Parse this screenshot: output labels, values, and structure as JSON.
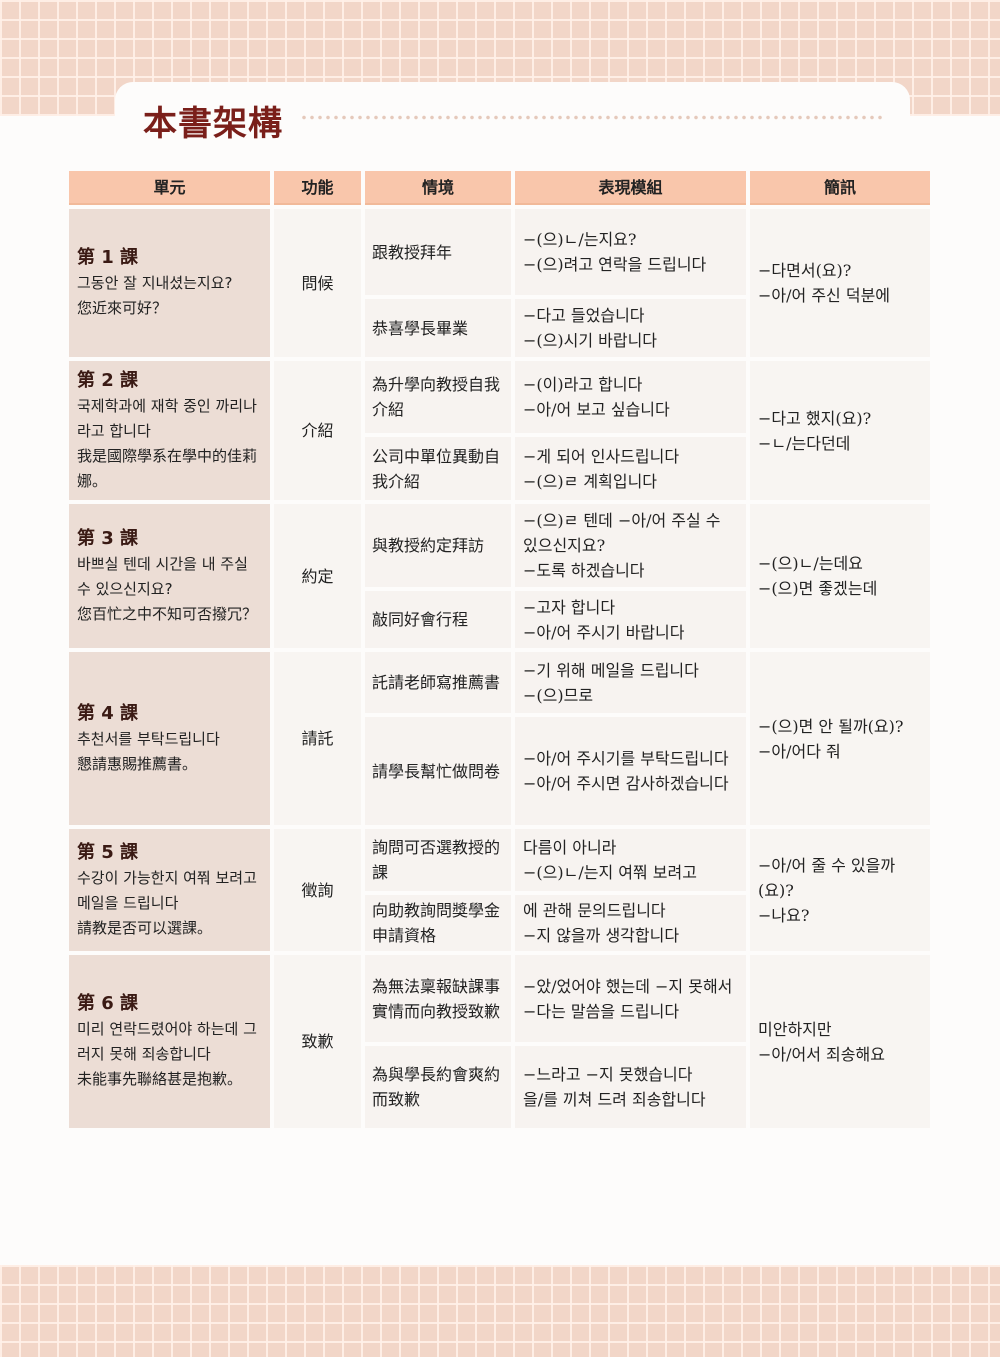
{
  "title": "本書架構",
  "headers": [
    "單元",
    "功能",
    "情境",
    "表現模組",
    "簡訊"
  ],
  "lessons": [
    {
      "lesson": "第 1 課",
      "korean": "그동안 잘 지내셨는지요?",
      "chinese": "您近來可好？",
      "function": "問候",
      "situations": [
        {
          "text": "跟教授拜年",
          "expressions": [
            "−(으)ㄴ/는지요?",
            "−(으)려고 연락을 드립니다"
          ]
        },
        {
          "text": "恭喜學長畢業",
          "expressions": [
            "−다고 들었습니다",
            "−(으)시기 바랍니다"
          ]
        }
      ],
      "notes": [
        "−다면서(요)?",
        "−아/어 주신 덕분에"
      ]
    },
    {
      "lesson": "第 2 課",
      "korean": "국제학과에 재학 중인 까리나라고 합니다",
      "chinese": "我是國際學系在學中的佳莉娜。",
      "function": "介紹",
      "situations": [
        {
          "text": "為升學向教授自我介紹",
          "expressions": [
            "−(이)라고 합니다",
            "−아/어 보고 싶습니다"
          ]
        },
        {
          "text": "公司中單位異動自我介紹",
          "expressions": [
            "−게 되어 인사드립니다",
            "−(으)ㄹ 계획입니다"
          ]
        }
      ],
      "notes": [
        "−다고 했지(요)?",
        "−ㄴ/는다던데"
      ]
    },
    {
      "lesson": "第 3 課",
      "korean": "바쁘실 텐데 시간을 내 주실 수 있으신지요?",
      "chinese": "您百忙之中不知可否撥冗？",
      "function": "約定",
      "situations": [
        {
          "text": "與教授約定拜訪",
          "expressions": [
            "−(으)ㄹ 텐데 −아/어 주실 수 있으신지요?",
            "−도록 하겠습니다"
          ]
        },
        {
          "text": "敲同好會行程",
          "expressions": [
            "−고자 합니다",
            "−아/어 주시기 바랍니다"
          ]
        }
      ],
      "notes": [
        "−(으)ㄴ/는데요",
        "−(으)면 좋겠는데"
      ]
    },
    {
      "lesson": "第 4 課",
      "korean": "추천서를 부탁드립니다",
      "chinese": "懇請惠賜推薦書。",
      "function": "請託",
      "situations": [
        {
          "text": "託請老師寫推薦書",
          "expressions": [
            "−기 위해 메일을 드립니다",
            "−(으)므로"
          ]
        },
        {
          "text": "請學長幫忙做問卷",
          "expressions": [
            "−아/어 주시기를 부탁드립니다",
            "−아/어 주시면 감사하겠습니다"
          ]
        }
      ],
      "notes": [
        "−(으)면 안 될까(요)?",
        "−아/어다 줘"
      ]
    },
    {
      "lesson": "第 5 課",
      "korean": "수강이 가능한지 여쭤 보려고 메일을 드립니다",
      "chinese": "請教是否可以選課。",
      "function": "徵詢",
      "situations": [
        {
          "text": "詢問可否選教授的課",
          "expressions": [
            "다름이 아니라",
            "−(으)ㄴ/는지 여쭤 보려고"
          ]
        },
        {
          "text": "向助教詢問獎學金申請資格",
          "expressions": [
            "에 관해 문의드립니다",
            "−지 않을까 생각합니다"
          ]
        }
      ],
      "notes": [
        "−아/어 줄 수 있을까(요)?",
        "−나요?"
      ]
    },
    {
      "lesson": "第 6 課",
      "korean": "미리 연락드렸어야 하는데 그러지 못해 죄송합니다",
      "chinese": "未能事先聯絡甚是抱歉。",
      "function": "致歉",
      "situations": [
        {
          "text": "為無法稟報缺課事實情而向教授致歉",
          "expressions": [
            "−았/었어야 했는데 −지 못해서",
            "−다는 말씀을 드립니다"
          ]
        },
        {
          "text": "為與學長約會爽約而致歉",
          "expressions": [
            "−느라고 −지 못했습니다",
            "을/를 끼쳐 드려 죄송합니다"
          ]
        }
      ],
      "notes": [
        "미안하지만",
        "−아/어서 죄송해요"
      ]
    }
  ]
}
